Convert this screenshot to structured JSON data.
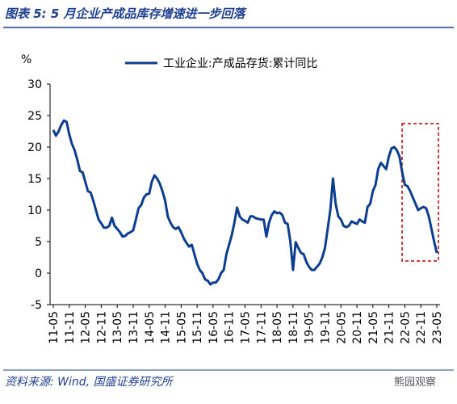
{
  "title": "图表 5: 5 月企业产成品库存增速进一步回落",
  "source": "资料来源: Wind, 国盛证券研究所",
  "watermark": "熊园观察",
  "chart_data": {
    "type": "line",
    "y_unit": "%",
    "categories": [
      "11-05",
      null,
      null,
      null,
      null,
      null,
      "11-11",
      null,
      null,
      null,
      null,
      null,
      "12-05",
      null,
      null,
      null,
      null,
      null,
      "12-11",
      null,
      null,
      null,
      null,
      null,
      "13-05",
      null,
      null,
      null,
      null,
      null,
      "13-11",
      null,
      null,
      null,
      null,
      null,
      "14-05",
      null,
      null,
      null,
      null,
      null,
      "14-11",
      null,
      null,
      null,
      null,
      null,
      "15-05",
      null,
      null,
      null,
      null,
      null,
      "15-11",
      null,
      null,
      null,
      null,
      null,
      "16-05",
      null,
      null,
      null,
      null,
      null,
      "16-11",
      null,
      null,
      null,
      null,
      null,
      "17-05",
      null,
      null,
      null,
      null,
      null,
      "17-11",
      null,
      null,
      null,
      null,
      null,
      "18-05",
      null,
      null,
      null,
      null,
      null,
      "18-11",
      null,
      null,
      null,
      null,
      null,
      "19-05",
      null,
      null,
      null,
      null,
      null,
      "19-11",
      null,
      null,
      null,
      null,
      null,
      "20-05",
      null,
      null,
      null,
      null,
      null,
      "20-11",
      null,
      null,
      null,
      null,
      null,
      "21-05",
      null,
      null,
      null,
      null,
      null,
      "21-11",
      null,
      null,
      null,
      null,
      null,
      "22-05",
      null,
      null,
      null,
      null,
      null,
      "22-11",
      null,
      null,
      null,
      null,
      null,
      "23-05"
    ],
    "series": [
      {
        "name": "工业企业:产成品存货:累计同比",
        "color": "#0b3d91",
        "values": [
          22.7,
          21.8,
          22.5,
          23.5,
          24.2,
          24.0,
          22.0,
          20.5,
          19.5,
          18.0,
          16.2,
          16.0,
          14.5,
          13.0,
          12.8,
          11.5,
          10.0,
          8.5,
          7.9,
          7.2,
          7.2,
          7.5,
          8.8,
          7.5,
          7.0,
          6.5,
          5.8,
          5.9,
          6.3,
          6.5,
          6.8,
          8.5,
          10.3,
          10.8,
          12.0,
          12.5,
          12.6,
          14.5,
          15.5,
          15.0,
          14.2,
          13.0,
          11.5,
          9.0,
          8.0,
          7.3,
          7.0,
          7.3,
          6.5,
          5.5,
          4.8,
          4.2,
          4.5,
          3.0,
          1.5,
          0.5,
          0.0,
          -1.0,
          -1.2,
          -1.8,
          -1.5,
          -1.5,
          -1.0,
          0.0,
          0.5,
          3.0,
          4.5,
          6.0,
          8.0,
          10.4,
          9.0,
          8.5,
          8.3,
          8.0,
          9.0,
          9.0,
          8.7,
          8.6,
          8.5,
          8.5,
          5.8,
          8.0,
          9.2,
          9.8,
          9.5,
          9.6,
          9.2,
          8.0,
          7.8,
          5.0,
          0.5,
          4.9,
          4.0,
          3.2,
          3.0,
          1.8,
          1.0,
          0.5,
          0.5,
          1.0,
          1.5,
          2.5,
          4.0,
          7.0,
          10.0,
          15.0,
          11.0,
          9.0,
          8.5,
          7.5,
          7.3,
          7.5,
          8.2,
          8.0,
          7.8,
          8.5,
          8.2,
          8.0,
          10.5,
          11.0,
          13.0,
          14.0,
          16.5,
          17.5,
          17.0,
          16.5,
          18.5,
          19.8,
          20.0,
          19.5,
          18.5,
          16.0,
          14.0,
          13.8,
          13.0,
          12.0,
          11.0,
          10.0,
          10.3,
          10.5,
          10.3,
          9.0,
          7.0,
          5.0,
          3.2
        ]
      }
    ],
    "ylim": [
      -5,
      30
    ],
    "yticks": [
      -5,
      0,
      5,
      10,
      15,
      20,
      25,
      30
    ],
    "grid": false
  }
}
